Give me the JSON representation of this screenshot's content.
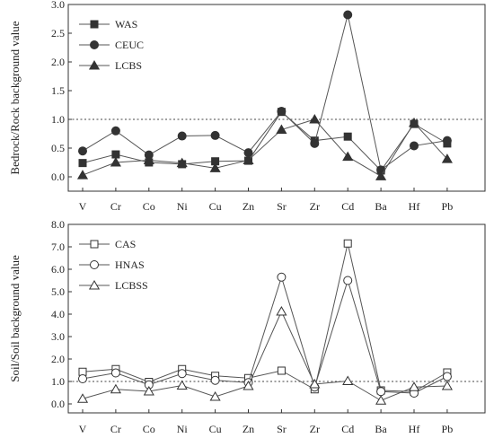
{
  "chart_data": [
    {
      "type": "line",
      "categories": [
        "V",
        "Cr",
        "Co",
        "Ni",
        "Cu",
        "Zn",
        "Sr",
        "Zr",
        "Cd",
        "Ba",
        "Hf",
        "Pb"
      ],
      "ylabel": "Bedrock/Rock background value",
      "ylim": [
        -0.25,
        3.0
      ],
      "yticks": [
        "0.0",
        "0.5",
        "1.0",
        "1.5",
        "2.0",
        "2.5",
        "3.0"
      ],
      "reference_line": 1.0,
      "legend_position": "top-left",
      "series": [
        {
          "name": "WAS",
          "marker": "square-filled",
          "values": [
            0.24,
            0.39,
            0.25,
            0.22,
            0.27,
            0.28,
            1.13,
            0.63,
            0.7,
            0.11,
            0.92,
            0.58
          ]
        },
        {
          "name": "CEUC",
          "marker": "circle-filled",
          "values": [
            0.45,
            0.8,
            0.38,
            0.71,
            0.72,
            0.42,
            1.14,
            0.58,
            2.82,
            0.12,
            0.54,
            0.63
          ]
        },
        {
          "name": "LCBS",
          "marker": "triangle-filled",
          "values": [
            0.03,
            0.25,
            0.29,
            0.24,
            0.15,
            0.29,
            0.82,
            1.0,
            0.35,
            0.01,
            0.94,
            0.31
          ]
        }
      ]
    },
    {
      "type": "line",
      "categories": [
        "V",
        "Cr",
        "Co",
        "Ni",
        "Cu",
        "Zn",
        "Sr",
        "Zr",
        "Cd",
        "Ba",
        "Hf",
        "Pb"
      ],
      "ylabel": "Soil/Soil background value",
      "ylim": [
        -0.4,
        8.0
      ],
      "yticks": [
        "0.0",
        "1.0",
        "2.0",
        "3.0",
        "4.0",
        "5.0",
        "6.0",
        "7.0",
        "8.0"
      ],
      "reference_line": 1.0,
      "legend_position": "top-left",
      "series": [
        {
          "name": "CAS",
          "marker": "square-open",
          "values": [
            1.43,
            1.55,
            0.98,
            1.55,
            1.25,
            1.15,
            1.48,
            0.65,
            7.15,
            0.6,
            0.55,
            1.4
          ]
        },
        {
          "name": "HNAS",
          "marker": "circle-open",
          "values": [
            1.12,
            1.38,
            0.85,
            1.35,
            1.05,
            0.95,
            5.65,
            0.75,
            5.5,
            0.55,
            0.48,
            1.22
          ]
        },
        {
          "name": "LCBSS",
          "marker": "triangle-open",
          "values": [
            0.23,
            0.65,
            0.56,
            0.82,
            0.32,
            0.8,
            4.12,
            0.88,
            1.02,
            0.15,
            0.75,
            0.8
          ]
        }
      ]
    }
  ],
  "colors": {
    "line": "#555555",
    "marker": "#333333",
    "axis": "#333333"
  }
}
